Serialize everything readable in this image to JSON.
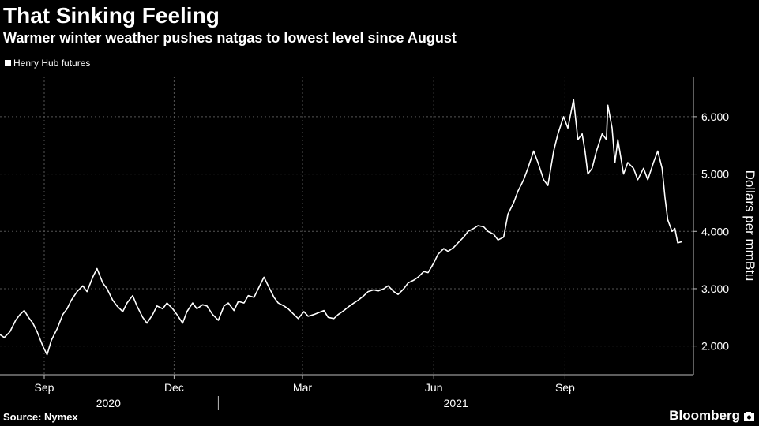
{
  "header": {
    "title": "That Sinking Feeling",
    "subtitle": "Warmer winter weather pushes natgas to lowest level since August"
  },
  "footer": {
    "source": "Source: Nymex",
    "brand": "Bloomberg",
    "brand_icon": "camera-icon"
  },
  "colors": {
    "background": "#000000",
    "line": "#ffffff",
    "grid": "#555555"
  },
  "chart_data": {
    "type": "line",
    "title": "That Sinking Feeling",
    "subtitle": "Warmer winter weather pushes natgas to lowest level since August",
    "ylabel": "Dollars per mmBtu",
    "y_axis_side": "right",
    "ylim": [
      1.5,
      6.7
    ],
    "yticks": [
      2,
      3,
      4,
      5,
      6
    ],
    "ytick_labels": [
      "2.000",
      "3.000",
      "4.000",
      "5.000",
      "6.000"
    ],
    "xlim": [
      "2020-08-01",
      "2021-11-30"
    ],
    "xticks": [
      {
        "date": "2020-09-01",
        "label": "Sep"
      },
      {
        "date": "2020-12-01",
        "label": "Dec"
      },
      {
        "date": "2021-03-01",
        "label": "Mar"
      },
      {
        "date": "2021-06-01",
        "label": "Jun"
      },
      {
        "date": "2021-09-01",
        "label": "Sep"
      }
    ],
    "year_labels": [
      {
        "label": "2020",
        "start": "2020-08-01",
        "end": "2020-12-31"
      },
      {
        "label": "2021",
        "start": "2021-01-01",
        "end": "2021-11-30"
      }
    ],
    "grid": true,
    "legend_position": "top-left",
    "series": [
      {
        "name": "Henry Hub futures",
        "x": [
          "2020-08-01",
          "2020-08-04",
          "2020-08-08",
          "2020-08-12",
          "2020-08-15",
          "2020-08-18",
          "2020-08-21",
          "2020-08-24",
          "2020-08-27",
          "2020-08-31",
          "2020-09-03",
          "2020-09-06",
          "2020-09-10",
          "2020-09-14",
          "2020-09-17",
          "2020-09-20",
          "2020-09-24",
          "2020-09-28",
          "2020-10-01",
          "2020-10-05",
          "2020-10-08",
          "2020-10-12",
          "2020-10-15",
          "2020-10-19",
          "2020-10-22",
          "2020-10-26",
          "2020-10-29",
          "2020-11-02",
          "2020-11-05",
          "2020-11-09",
          "2020-11-12",
          "2020-11-16",
          "2020-11-19",
          "2020-11-23",
          "2020-11-26",
          "2020-11-30",
          "2020-12-03",
          "2020-12-07",
          "2020-12-10",
          "2020-12-14",
          "2020-12-17",
          "2020-12-21",
          "2020-12-24",
          "2020-12-28",
          "2021-01-01",
          "2021-01-05",
          "2021-01-08",
          "2021-01-12",
          "2021-01-15",
          "2021-01-19",
          "2021-01-22",
          "2021-01-26",
          "2021-01-29",
          "2021-02-02",
          "2021-02-05",
          "2021-02-09",
          "2021-02-12",
          "2021-02-16",
          "2021-02-19",
          "2021-02-23",
          "2021-02-26",
          "2021-03-02",
          "2021-03-05",
          "2021-03-09",
          "2021-03-12",
          "2021-03-16",
          "2021-03-19",
          "2021-03-23",
          "2021-03-26",
          "2021-03-30",
          "2021-04-02",
          "2021-04-06",
          "2021-04-09",
          "2021-04-13",
          "2021-04-16",
          "2021-04-20",
          "2021-04-23",
          "2021-04-27",
          "2021-04-30",
          "2021-05-04",
          "2021-05-07",
          "2021-05-11",
          "2021-05-14",
          "2021-05-18",
          "2021-05-21",
          "2021-05-25",
          "2021-05-28",
          "2021-06-01",
          "2021-06-04",
          "2021-06-08",
          "2021-06-11",
          "2021-06-15",
          "2021-06-18",
          "2021-06-22",
          "2021-06-25",
          "2021-06-29",
          "2021-07-02",
          "2021-07-06",
          "2021-07-09",
          "2021-07-13",
          "2021-07-16",
          "2021-07-20",
          "2021-07-23",
          "2021-07-27",
          "2021-07-30",
          "2021-08-03",
          "2021-08-06",
          "2021-08-10",
          "2021-08-13",
          "2021-08-17",
          "2021-08-20",
          "2021-08-24",
          "2021-08-27",
          "2021-08-31",
          "2021-09-03",
          "2021-09-07",
          "2021-09-10",
          "2021-09-13",
          "2021-09-15",
          "2021-09-17",
          "2021-09-20",
          "2021-09-23",
          "2021-09-27",
          "2021-09-30",
          "2021-10-01",
          "2021-10-04",
          "2021-10-06",
          "2021-10-08",
          "2021-10-12",
          "2021-10-15",
          "2021-10-19",
          "2021-10-22",
          "2021-10-26",
          "2021-10-29",
          "2021-11-02",
          "2021-11-05",
          "2021-11-08",
          "2021-11-10",
          "2021-11-12",
          "2021-11-15",
          "2021-11-17",
          "2021-11-19",
          "2021-11-22"
        ],
        "y": [
          2.2,
          2.15,
          2.25,
          2.45,
          2.55,
          2.62,
          2.5,
          2.4,
          2.25,
          2.0,
          1.85,
          2.1,
          2.3,
          2.55,
          2.65,
          2.8,
          2.95,
          3.05,
          2.95,
          3.2,
          3.35,
          3.1,
          3.0,
          2.8,
          2.7,
          2.6,
          2.75,
          2.88,
          2.7,
          2.5,
          2.4,
          2.55,
          2.7,
          2.65,
          2.75,
          2.65,
          2.55,
          2.4,
          2.6,
          2.75,
          2.65,
          2.72,
          2.7,
          2.55,
          2.45,
          2.7,
          2.75,
          2.62,
          2.78,
          2.75,
          2.88,
          2.85,
          3.0,
          3.2,
          3.05,
          2.85,
          2.75,
          2.7,
          2.65,
          2.55,
          2.48,
          2.6,
          2.52,
          2.55,
          2.58,
          2.62,
          2.5,
          2.48,
          2.55,
          2.62,
          2.68,
          2.75,
          2.8,
          2.88,
          2.95,
          2.98,
          2.96,
          3.0,
          3.05,
          2.95,
          2.9,
          3.0,
          3.1,
          3.15,
          3.2,
          3.3,
          3.28,
          3.45,
          3.6,
          3.7,
          3.65,
          3.72,
          3.8,
          3.9,
          4.0,
          4.05,
          4.1,
          4.08,
          4.0,
          3.95,
          3.85,
          3.9,
          4.3,
          4.5,
          4.7,
          4.9,
          5.1,
          5.4,
          5.2,
          4.9,
          4.8,
          5.4,
          5.7,
          6.0,
          5.8,
          6.3,
          5.6,
          5.7,
          5.4,
          5.0,
          5.1,
          5.4,
          5.7,
          5.6,
          6.2,
          5.8,
          5.2,
          5.6,
          5.0,
          5.2,
          5.1,
          4.9,
          5.1,
          4.9,
          5.2,
          5.4,
          5.1,
          4.6,
          4.2,
          4.0,
          4.05,
          3.8,
          3.82
        ]
      }
    ]
  }
}
